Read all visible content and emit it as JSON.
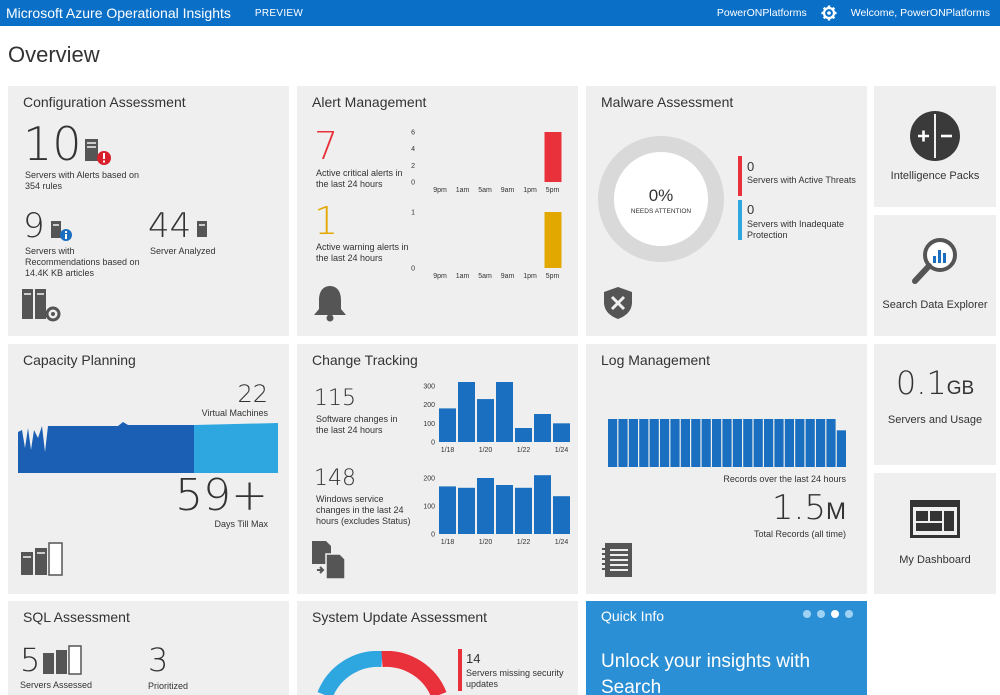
{
  "header": {
    "brand": "Microsoft Azure Operational Insights",
    "preview": "PREVIEW",
    "workspace": "PowerONPlatforms",
    "welcome": "Welcome, PowerONPlatforms"
  },
  "page_title": "Overview",
  "config": {
    "title": "Configuration Assessment",
    "alert_count": "10",
    "alert_desc": "Servers with Alerts based on 354 rules",
    "rec_count": "9",
    "rec_desc": "Servers with Recommendations based on 14.4K KB articles",
    "analyzed_count": "44",
    "analyzed_desc": "Server Analyzed"
  },
  "alert": {
    "title": "Alert Management",
    "critical_count": "7",
    "critical_desc": "Active critical alerts in the last 24 hours",
    "warning_count": "1",
    "warning_desc": "Active warning alerts in the last 24 hours",
    "critical_yticks": [
      "6",
      "4",
      "2",
      "0"
    ],
    "warning_yticks": [
      "1",
      "0"
    ],
    "xticks": [
      "9pm",
      "1am",
      "5am",
      "9am",
      "1pm",
      "5pm"
    ]
  },
  "malware": {
    "title": "Malware Assessment",
    "percent": "0%",
    "needs": "NEEDS ATTENTION",
    "threat_count": "0",
    "threat_desc": "Servers with Active Threats",
    "inadequate_count": "0",
    "inadequate_desc": "Servers with Inadequate Protection"
  },
  "side": {
    "intelligence": "Intelligence Packs",
    "search": "Search Data Explorer",
    "usage_value": "0.1",
    "usage_unit": "GB",
    "usage_label": "Servers and Usage",
    "dashboard": "My Dashboard"
  },
  "capacity": {
    "title": "Capacity Planning",
    "vm_count": "22",
    "vm_label": "Virtual Machines",
    "days": "59+",
    "days_label": "Days Till Max"
  },
  "change": {
    "title": "Change Tracking",
    "sw_count": "115",
    "sw_desc": "Software changes in the last 24 hours",
    "win_count": "148",
    "win_desc": "Windows service changes in the last 24 hours (excludes Status)",
    "sw_yticks": [
      "300",
      "200",
      "100",
      "0"
    ],
    "win_yticks": [
      "200",
      "100",
      "0"
    ],
    "xticks": [
      "1/18",
      "1/20",
      "1/22",
      "1/24"
    ]
  },
  "log": {
    "title": "Log Management",
    "records_label": "Records over the last 24 hours",
    "total": "1.5",
    "total_unit": "M",
    "total_label": "Total Records (all time)"
  },
  "sql": {
    "title": "SQL Assessment",
    "assessed_count": "5",
    "assessed_label": "Servers Assessed",
    "prioritized_count": "3",
    "prioritized_label": "Prioritized"
  },
  "sysupdate": {
    "title": "System Update Assessment",
    "missing_count": "14",
    "missing_desc": "Servers missing security updates"
  },
  "quick": {
    "title": "Quick Info",
    "headline": "Unlock your insights with Search"
  },
  "colors": {
    "topbar": "#0a6fc7",
    "critical": "#e8313a",
    "warning": "#e2a800",
    "bar_blue": "#1a6fc0",
    "light_blue": "#2ea7e0",
    "quick_bg": "#2a8fd4"
  },
  "chart_data": [
    {
      "type": "bar",
      "name": "critical-alerts",
      "categories": [
        "9pm",
        "1am",
        "5am",
        "9am",
        "1pm",
        "5pm"
      ],
      "values": [
        0,
        0,
        0,
        0,
        0,
        7
      ],
      "ylim": [
        0,
        7
      ]
    },
    {
      "type": "bar",
      "name": "warning-alerts",
      "categories": [
        "9pm",
        "1am",
        "5am",
        "9am",
        "1pm",
        "5pm"
      ],
      "values": [
        0,
        0,
        0,
        0,
        0,
        1
      ],
      "ylim": [
        0,
        1
      ]
    },
    {
      "type": "bar",
      "name": "software-changes",
      "categories": [
        "1/18",
        "1/19",
        "1/20",
        "1/21",
        "1/22",
        "1/23",
        "1/24"
      ],
      "values": [
        180,
        380,
        230,
        360,
        75,
        150,
        100
      ],
      "ylim": [
        0,
        380
      ]
    },
    {
      "type": "bar",
      "name": "windows-service-changes",
      "categories": [
        "1/18",
        "1/19",
        "1/20",
        "1/21",
        "1/22",
        "1/23",
        "1/24"
      ],
      "values": [
        170,
        165,
        200,
        175,
        165,
        210,
        135
      ],
      "ylim": [
        0,
        230
      ]
    },
    {
      "type": "bar",
      "name": "log-records",
      "values": [
        72,
        72,
        72,
        72,
        72,
        72,
        72,
        72,
        72,
        72,
        72,
        72,
        72,
        72,
        72,
        72,
        72,
        72,
        72,
        72,
        72,
        72,
        55
      ],
      "ylim": [
        0,
        72
      ]
    }
  ]
}
